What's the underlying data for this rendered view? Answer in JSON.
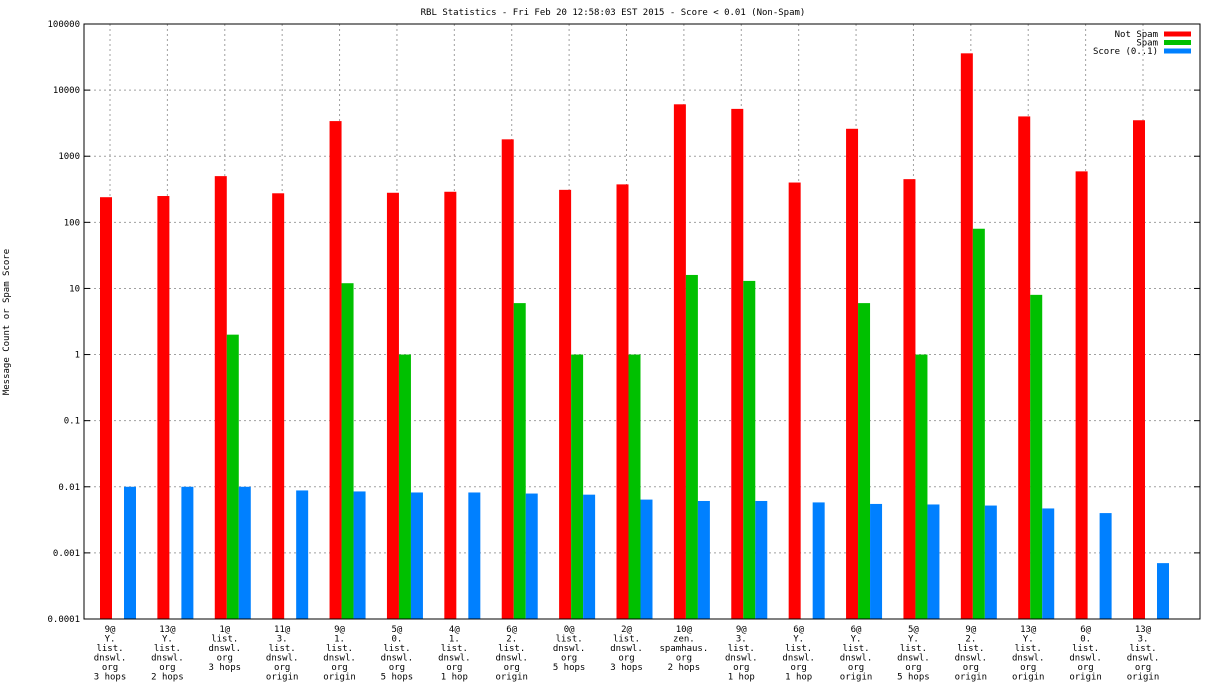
{
  "chart_data": {
    "type": "bar",
    "title": "RBL Statistics - Fri Feb 20 12:58:03 EST 2015 - Score < 0.01 (Non-Spam)",
    "xlabel": "",
    "ylabel": "Message Count or Spam Score",
    "yscale": "log",
    "ylim": [
      0.0001,
      100000
    ],
    "yticks": [
      "0.0001",
      "0.001",
      "0.01",
      "0.1",
      "1",
      "10",
      "100",
      "1000",
      "10000",
      "100000"
    ],
    "grid": true,
    "legend_position": "top-right",
    "categories": [
      [
        "9@",
        "Y.",
        "list.",
        "dnswl.",
        "org",
        "3 hops"
      ],
      [
        "13@",
        "Y.",
        "list.",
        "dnswl.",
        "org",
        "2 hops"
      ],
      [
        "1@",
        "list.",
        "dnswl.",
        "org",
        "3 hops"
      ],
      [
        "11@",
        "3.",
        "list.",
        "dnswl.",
        "org",
        "origin"
      ],
      [
        "9@",
        "1.",
        "list.",
        "dnswl.",
        "org",
        "origin"
      ],
      [
        "5@",
        "0.",
        "list.",
        "dnswl.",
        "org",
        "5 hops"
      ],
      [
        "4@",
        "1.",
        "list.",
        "dnswl.",
        "org",
        "1 hop"
      ],
      [
        "6@",
        "2.",
        "list.",
        "dnswl.",
        "org",
        "origin"
      ],
      [
        "0@",
        "list.",
        "dnswl.",
        "org",
        "5 hops"
      ],
      [
        "2@",
        "list.",
        "dnswl.",
        "org",
        "3 hops"
      ],
      [
        "10@",
        "zen.",
        "spamhaus.",
        "org",
        "2 hops"
      ],
      [
        "9@",
        "3.",
        "list.",
        "dnswl.",
        "org",
        "1 hop"
      ],
      [
        "6@",
        "Y.",
        "list.",
        "dnswl.",
        "org",
        "1 hop"
      ],
      [
        "6@",
        "Y.",
        "list.",
        "dnswl.",
        "org",
        "origin"
      ],
      [
        "5@",
        "Y.",
        "list.",
        "dnswl.",
        "org",
        "5 hops"
      ],
      [
        "9@",
        "2.",
        "list.",
        "dnswl.",
        "org",
        "origin"
      ],
      [
        "13@",
        "Y.",
        "list.",
        "dnswl.",
        "org",
        "origin"
      ],
      [
        "6@",
        "0.",
        "list.",
        "dnswl.",
        "org",
        "origin"
      ],
      [
        "13@",
        "3.",
        "list.",
        "dnswl.",
        "org",
        "origin"
      ]
    ],
    "series": [
      {
        "name": "Not Spam",
        "color": "#ff0000",
        "values": [
          240,
          250,
          500,
          275,
          3400,
          280,
          290,
          1800,
          310,
          375,
          6100,
          5200,
          400,
          2600,
          450,
          36000,
          4000,
          590,
          3500
        ]
      },
      {
        "name": "Spam",
        "color": "#00c000",
        "values": [
          0,
          0,
          2,
          0,
          12,
          1,
          0,
          6,
          1,
          1,
          16,
          13,
          0,
          6,
          1,
          80,
          8,
          0,
          0
        ]
      },
      {
        "name": "Score (0..1)",
        "color": "#0080ff",
        "values": [
          0.01,
          0.01,
          0.01,
          0.0088,
          0.0085,
          0.0082,
          0.0082,
          0.0079,
          0.0076,
          0.0064,
          0.0061,
          0.0061,
          0.0058,
          0.0055,
          0.0054,
          0.0052,
          0.0047,
          0.004,
          0.0007
        ]
      }
    ]
  }
}
